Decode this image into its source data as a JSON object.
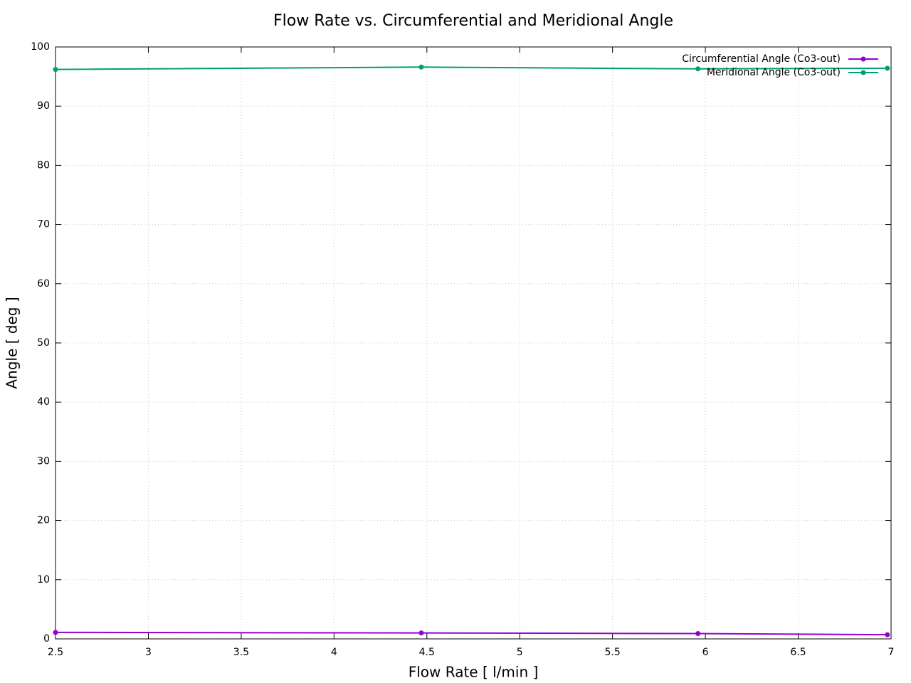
{
  "chart_data": {
    "type": "line",
    "title": "Flow Rate vs. Circumferential and Meridional Angle",
    "x_label": "Flow Rate [ l/min ]",
    "y_label": "Angle [ deg ]",
    "x": [
      2.5,
      4.47,
      5.96,
      6.98
    ],
    "series": [
      {
        "name": "Circumferential Angle (Co3-out)",
        "color": "#9400d3",
        "values": [
          1.1,
          1.0,
          0.9,
          0.7
        ]
      },
      {
        "name": "Meridional Angle (Co3-out)",
        "color": "#009e73",
        "values": [
          96.2,
          96.6,
          96.3,
          96.4
        ]
      }
    ],
    "xlim": [
      2.5,
      7
    ],
    "xticks": [
      2.5,
      3,
      3.5,
      4,
      4.5,
      5,
      5.5,
      6,
      6.5,
      7
    ],
    "ylim": [
      0,
      100
    ],
    "yticks": [
      0,
      10,
      20,
      30,
      40,
      50,
      60,
      70,
      80,
      90,
      100
    ],
    "grid": true,
    "legend": "top-right"
  }
}
